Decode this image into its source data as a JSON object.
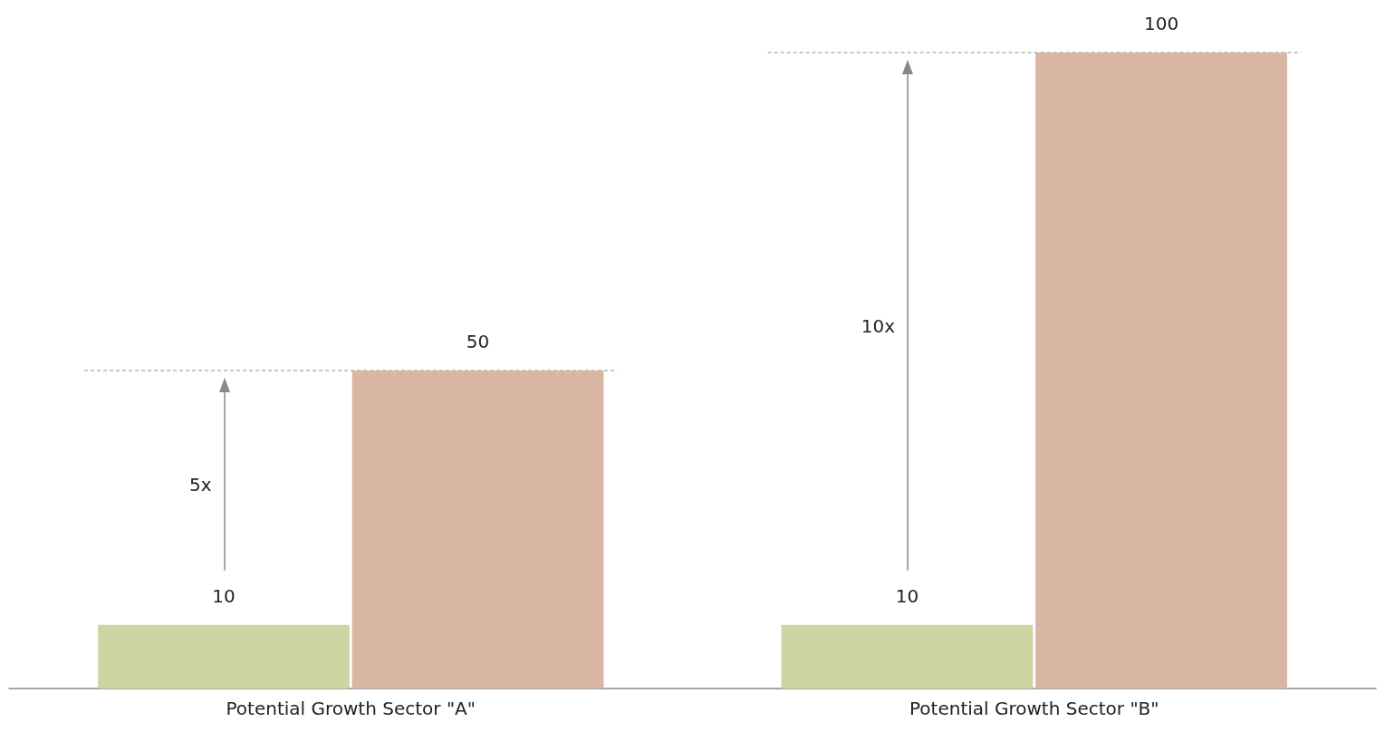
{
  "chart_data": {
    "type": "bar",
    "categories": [
      "Potential Growth Sector \"A\"",
      "Potential Growth Sector \"B\""
    ],
    "series": [
      {
        "color": "#cdd5a3",
        "values": [
          10,
          10
        ]
      },
      {
        "color": "#d9b5a3",
        "values": [
          50,
          100
        ]
      }
    ],
    "data_labels": true,
    "ref_lines": [
      {
        "axis": "y",
        "value": 50,
        "color": "#8c8c8c",
        "line_style": "dashed"
      },
      {
        "axis": "y",
        "value": 100,
        "color": "#8c8c8c",
        "line_style": "dashed"
      }
    ],
    "annotations": [
      "5x",
      "10x"
    ]
  }
}
